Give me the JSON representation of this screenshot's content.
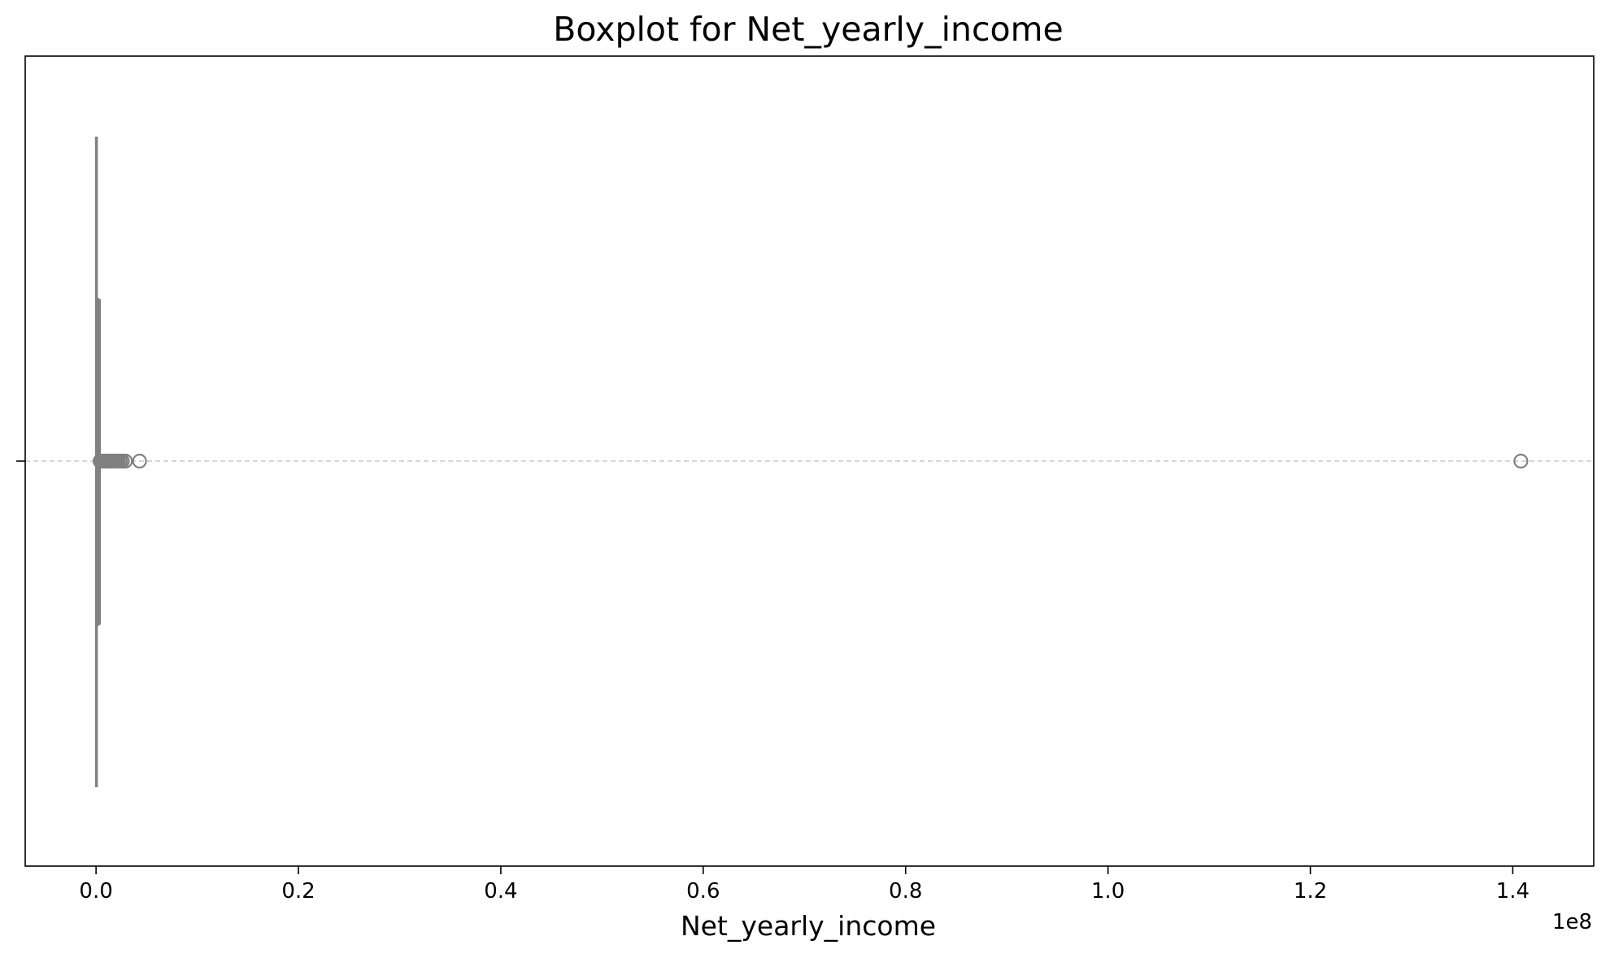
{
  "chart_data": {
    "type": "boxplot",
    "title": "Boxplot for Net_yearly_income",
    "xlabel": "Net_yearly_income",
    "ylabel": "",
    "x_scale_offset": "1e8",
    "xlim": [
      -0.07,
      1.48
    ],
    "xticks": [
      {
        "value": 0.0,
        "label": "0.0"
      },
      {
        "value": 0.2,
        "label": "0.2"
      },
      {
        "value": 0.4,
        "label": "0.4"
      },
      {
        "value": 0.6,
        "label": "0.6"
      },
      {
        "value": 0.8,
        "label": "0.8"
      },
      {
        "value": 1.0,
        "label": "1.0"
      },
      {
        "value": 1.2,
        "label": "1.2"
      },
      {
        "value": 1.4,
        "label": "1.4"
      }
    ],
    "grid": "horizontal dashed line at box center",
    "box": {
      "whisker_low": 0.0004,
      "q1": 0.0012,
      "median": 0.0016,
      "q3": 0.0022,
      "whisker_high": 0.0036
    },
    "outliers": [
      0.004,
      0.0055,
      0.007,
      0.0085,
      0.01,
      0.0115,
      0.013,
      0.0145,
      0.016,
      0.0175,
      0.019,
      0.0205,
      0.022,
      0.024,
      0.026,
      0.029,
      0.043,
      1.408
    ],
    "colors": {
      "box_line": "#808080",
      "box_fill": "#ffffff",
      "grid": "#c8c8c8",
      "axes": "#000000"
    }
  }
}
